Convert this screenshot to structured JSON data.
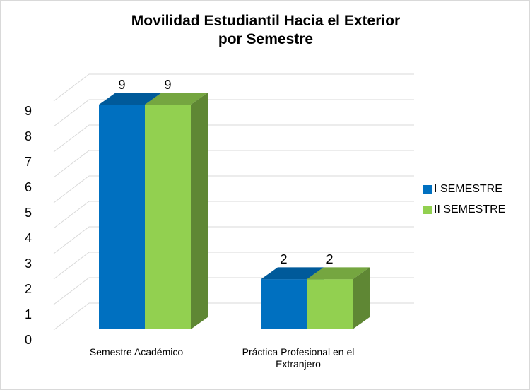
{
  "chart_data": {
    "type": "bar3d",
    "title": "Movilidad Estudiantil Hacia el Exterior por Semestre",
    "categories": [
      "Semestre Académico",
      "Práctica Profesional en el Extranjero"
    ],
    "series": [
      {
        "name": "I SEMESTRE",
        "color": "#0070c0",
        "values": [
          9,
          2
        ]
      },
      {
        "name": "II SEMESTRE",
        "color": "#92d050",
        "values": [
          9,
          2
        ]
      }
    ],
    "ylim": [
      0,
      9
    ],
    "yticks": [
      0,
      1,
      2,
      3,
      4,
      5,
      6,
      7,
      8,
      9
    ],
    "grid": true,
    "legend": "right"
  }
}
